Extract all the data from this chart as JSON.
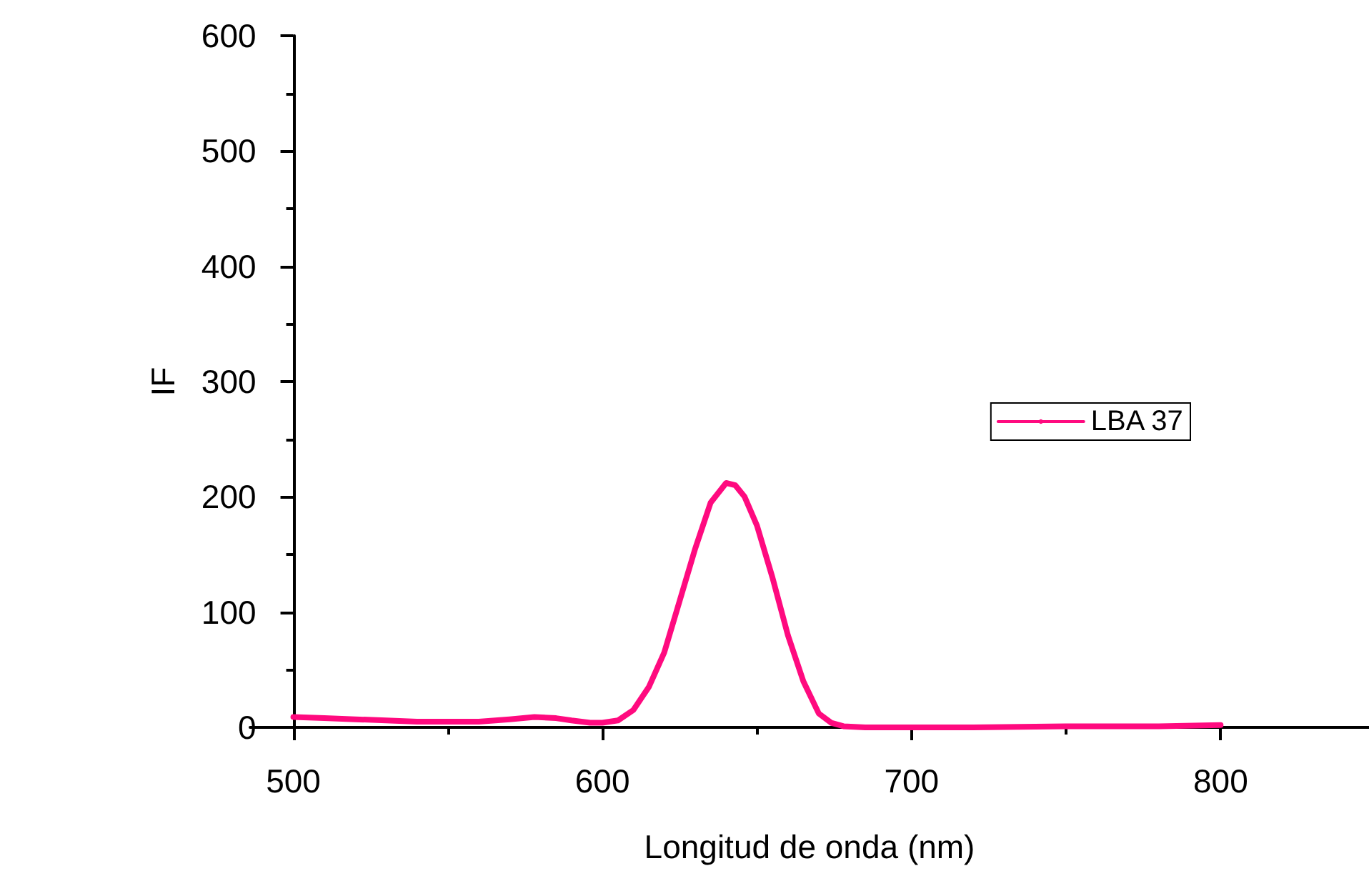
{
  "chart_data": {
    "type": "line",
    "xlabel": "Longitud de onda (nm)",
    "ylabel": "IF",
    "xlim": [
      486,
      848
    ],
    "xticks": [
      500,
      600,
      700,
      800
    ],
    "ylim": [
      0,
      600
    ],
    "yticks": [
      0,
      100,
      200,
      300,
      400,
      500,
      600
    ],
    "grid": false,
    "legend": "right",
    "marker": "none",
    "line_style": "solid",
    "series": [
      {
        "name": "LBA 37",
        "color": "#ff0a7f",
        "x": [
          500,
          510,
          520,
          530,
          540,
          550,
          560,
          570,
          578,
          585,
          590,
          596,
          600,
          605,
          610,
          615,
          620,
          625,
          630,
          635,
          640,
          643,
          646,
          650,
          655,
          660,
          665,
          670,
          674,
          678,
          685,
          700,
          720,
          750,
          780,
          800
        ],
        "values": [
          9,
          8,
          7,
          6,
          5,
          5,
          5,
          7,
          9,
          8,
          6,
          4,
          4,
          6,
          15,
          35,
          65,
          110,
          155,
          195,
          212,
          210,
          200,
          175,
          130,
          80,
          40,
          12,
          4,
          1,
          0,
          0,
          0,
          1,
          1,
          2
        ]
      }
    ]
  }
}
